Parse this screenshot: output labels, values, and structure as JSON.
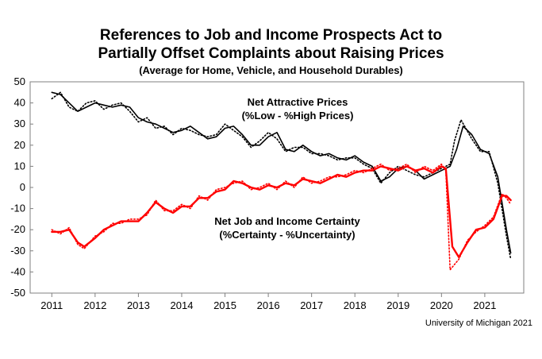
{
  "title": {
    "line1": "References to Job and Income Prospects Act to",
    "line2": "Partially Offset Complaints about Raising Prices",
    "line3": "(Average for Home, Vehicle, and Household Durables)"
  },
  "credit": "University of Michigan 2021",
  "chart_data": {
    "type": "line",
    "xlim": [
      2010.5,
      2021.9
    ],
    "ylim": [
      -50,
      50
    ],
    "x_ticks": [
      "2011",
      "2012",
      "2013",
      "2014",
      "2015",
      "2016",
      "2017",
      "2018",
      "2019",
      "2020",
      "2021"
    ],
    "y_ticks": [
      "50",
      "40",
      "30",
      "20",
      "10",
      "0",
      "-10",
      "-20",
      "-30",
      "-40",
      "-50"
    ],
    "grid": false,
    "annotations": [
      {
        "label": "Net Attractive Prices",
        "sub": "(%Low - %High Prices)",
        "anchor": "attractive"
      },
      {
        "label": "Net Job and Income Certainty",
        "sub": "(%Certainty - %Uncertainty)",
        "anchor": "certainty"
      }
    ],
    "series": [
      {
        "key": "attractive_smoothed",
        "color": "#000000",
        "style": "solid",
        "x": [
          2011.0,
          2011.2,
          2011.4,
          2011.6,
          2011.8,
          2012.0,
          2012.2,
          2012.4,
          2012.6,
          2012.8,
          2013.0,
          2013.2,
          2013.4,
          2013.6,
          2013.8,
          2014.0,
          2014.2,
          2014.4,
          2014.6,
          2014.8,
          2015.0,
          2015.2,
          2015.4,
          2015.6,
          2015.8,
          2016.0,
          2016.2,
          2016.4,
          2016.6,
          2016.8,
          2017.0,
          2017.2,
          2017.4,
          2017.6,
          2017.8,
          2018.0,
          2018.2,
          2018.4,
          2018.6,
          2018.8,
          2019.0,
          2019.2,
          2019.4,
          2019.6,
          2019.8,
          2020.0,
          2020.2,
          2020.35,
          2020.5,
          2020.7,
          2020.9,
          2021.1,
          2021.3,
          2021.5,
          2021.6
        ],
        "y": [
          45,
          44,
          40,
          36,
          38,
          40,
          39,
          38,
          39,
          38,
          33,
          31,
          30,
          28,
          26,
          27,
          29,
          26,
          23,
          24,
          28,
          29,
          25,
          20,
          20,
          24,
          26,
          18,
          17,
          20,
          17,
          15,
          16,
          14,
          13,
          15,
          12,
          10,
          3,
          5,
          9,
          10,
          8,
          4,
          6,
          8,
          10,
          18,
          29,
          25,
          18,
          16,
          5,
          -20,
          -31
        ]
      },
      {
        "key": "attractive_monthly",
        "color": "#000000",
        "style": "dotted",
        "x": [
          2011.0,
          2011.2,
          2011.4,
          2011.6,
          2011.8,
          2012.0,
          2012.2,
          2012.4,
          2012.6,
          2012.8,
          2013.0,
          2013.2,
          2013.4,
          2013.6,
          2013.8,
          2014.0,
          2014.2,
          2014.4,
          2014.6,
          2014.8,
          2015.0,
          2015.2,
          2015.4,
          2015.6,
          2015.8,
          2016.0,
          2016.2,
          2016.4,
          2016.6,
          2016.8,
          2017.0,
          2017.2,
          2017.4,
          2017.6,
          2017.8,
          2018.0,
          2018.2,
          2018.4,
          2018.6,
          2018.8,
          2019.0,
          2019.2,
          2019.4,
          2019.6,
          2019.8,
          2020.0,
          2020.2,
          2020.3,
          2020.45,
          2020.7,
          2020.9,
          2021.1,
          2021.3,
          2021.5,
          2021.6
        ],
        "y": [
          42,
          45,
          38,
          36,
          40,
          41,
          37,
          39,
          40,
          36,
          31,
          33,
          28,
          29,
          25,
          28,
          27,
          25,
          24,
          25,
          30,
          27,
          24,
          19,
          22,
          26,
          23,
          17,
          19,
          19,
          16,
          16,
          15,
          13,
          14,
          14,
          11,
          9,
          2,
          7,
          10,
          8,
          6,
          5,
          7,
          9,
          11,
          22,
          32,
          23,
          17,
          17,
          2,
          -23,
          -34
        ]
      },
      {
        "key": "certainty_smoothed",
        "color": "#ff0000",
        "style": "solid",
        "x": [
          2011.0,
          2011.2,
          2011.4,
          2011.6,
          2011.75,
          2012.0,
          2012.2,
          2012.4,
          2012.6,
          2012.8,
          2013.0,
          2013.2,
          2013.4,
          2013.6,
          2013.8,
          2014.0,
          2014.2,
          2014.4,
          2014.6,
          2014.8,
          2015.0,
          2015.2,
          2015.4,
          2015.6,
          2015.8,
          2016.0,
          2016.2,
          2016.4,
          2016.6,
          2016.8,
          2017.0,
          2017.2,
          2017.4,
          2017.6,
          2017.8,
          2018.0,
          2018.2,
          2018.4,
          2018.6,
          2018.8,
          2019.0,
          2019.2,
          2019.4,
          2019.6,
          2019.8,
          2020.0,
          2020.1,
          2020.25,
          2020.4,
          2020.6,
          2020.8,
          2021.0,
          2021.2,
          2021.4,
          2021.5,
          2021.6
        ],
        "y": [
          -21,
          -21,
          -20,
          -26,
          -28,
          -24,
          -20,
          -18,
          -16,
          -16,
          -16,
          -12,
          -7,
          -10,
          -12,
          -9,
          -9,
          -5,
          -5,
          -2,
          -1,
          3,
          2,
          0,
          -1,
          1,
          0,
          2,
          1,
          4,
          3,
          2,
          4,
          6,
          5,
          7,
          8,
          8,
          10,
          9,
          8,
          10,
          8,
          9,
          7,
          10,
          9,
          -28,
          -33,
          -26,
          -20,
          -19,
          -15,
          -4,
          -4,
          -6
        ]
      },
      {
        "key": "certainty_monthly",
        "color": "#ff0000",
        "style": "dotted",
        "x": [
          2011.0,
          2011.2,
          2011.4,
          2011.6,
          2011.75,
          2012.0,
          2012.2,
          2012.4,
          2012.6,
          2012.8,
          2013.0,
          2013.2,
          2013.4,
          2013.6,
          2013.8,
          2014.0,
          2014.2,
          2014.4,
          2014.6,
          2014.8,
          2015.0,
          2015.2,
          2015.4,
          2015.6,
          2015.8,
          2016.0,
          2016.2,
          2016.4,
          2016.6,
          2016.8,
          2017.0,
          2017.2,
          2017.4,
          2017.6,
          2017.8,
          2018.0,
          2018.2,
          2018.4,
          2018.6,
          2018.8,
          2019.0,
          2019.2,
          2019.4,
          2019.6,
          2019.8,
          2020.0,
          2020.1,
          2020.2,
          2020.4,
          2020.6,
          2020.8,
          2021.0,
          2021.2,
          2021.4,
          2021.5,
          2021.6
        ],
        "y": [
          -20,
          -22,
          -19,
          -27,
          -29,
          -23,
          -21,
          -17,
          -17,
          -15,
          -15,
          -13,
          -6,
          -11,
          -11,
          -8,
          -10,
          -4,
          -6,
          -1,
          0,
          2,
          3,
          -1,
          0,
          2,
          -1,
          3,
          0,
          5,
          2,
          3,
          5,
          5,
          6,
          8,
          7,
          9,
          11,
          8,
          9,
          11,
          7,
          10,
          8,
          11,
          8,
          -39,
          -34,
          -25,
          -21,
          -18,
          -14,
          -3,
          -5,
          -8
        ]
      }
    ]
  }
}
